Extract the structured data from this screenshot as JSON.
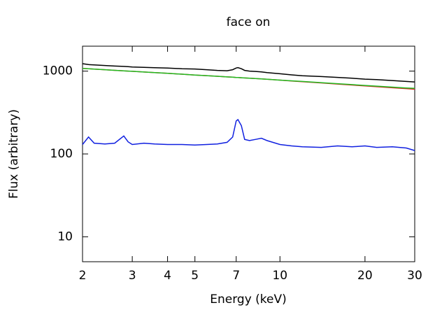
{
  "chart_data": {
    "type": "line",
    "title": "face on",
    "x_label": "Energy (keV)",
    "y_label": "Flux (arbitrary)",
    "xscale": "log",
    "yscale": "log",
    "xlim": [
      2,
      30
    ],
    "ylim": [
      5,
      2000
    ],
    "xticks": [
      2,
      3,
      4,
      5,
      7,
      10,
      20,
      30
    ],
    "yticks": [
      10,
      100,
      1000
    ],
    "x": [
      2,
      2.1,
      2.2,
      2.4,
      2.6,
      2.8,
      2.9,
      3,
      3.3,
      3.6,
      4,
      4.5,
      5,
      5.5,
      6,
      6.5,
      6.8,
      7,
      7.1,
      7.3,
      7.5,
      7.8,
      8.2,
      8.6,
      9,
      10,
      11,
      12,
      14,
      16,
      18,
      20,
      22,
      25,
      28,
      30
    ],
    "series": [
      {
        "color": "#000000",
        "values": [
          1230,
          1200,
          1190,
          1170,
          1150,
          1140,
          1130,
          1120,
          1110,
          1100,
          1090,
          1070,
          1060,
          1040,
          1020,
          1010,
          1040,
          1090,
          1100,
          1070,
          1020,
          1000,
          990,
          980,
          960,
          930,
          900,
          880,
          860,
          840,
          820,
          800,
          790,
          770,
          750,
          740
        ]
      },
      {
        "color": "#e02020",
        "values": [
          1080,
          1069,
          1059,
          1040,
          1023,
          1008,
          1001,
          994,
          975,
          958,
          940,
          918,
          898,
          881,
          866,
          852,
          845,
          839,
          837,
          832,
          827,
          821,
          812,
          804,
          797,
          779,
          760,
          745,
          720,
          698,
          680,
          663,
          648,
          630,
          615,
          605
        ]
      },
      {
        "color": "#22bb22",
        "values": [
          1080,
          1069,
          1059,
          1040,
          1023,
          1008,
          1001,
          994,
          975,
          958,
          940,
          918,
          898,
          881,
          866,
          852,
          845,
          839,
          837,
          832,
          827,
          821,
          812,
          804,
          797,
          779,
          764,
          750,
          726,
          705,
          687,
          671,
          658,
          641,
          626,
          620
        ]
      },
      {
        "color": "#1020e0",
        "values": [
          130,
          160,
          135,
          132,
          135,
          165,
          140,
          130,
          135,
          132,
          130,
          130,
          128,
          130,
          132,
          138,
          160,
          250,
          260,
          220,
          150,
          145,
          150,
          155,
          145,
          130,
          125,
          122,
          120,
          125,
          122,
          125,
          120,
          122,
          118,
          110
        ]
      }
    ]
  }
}
